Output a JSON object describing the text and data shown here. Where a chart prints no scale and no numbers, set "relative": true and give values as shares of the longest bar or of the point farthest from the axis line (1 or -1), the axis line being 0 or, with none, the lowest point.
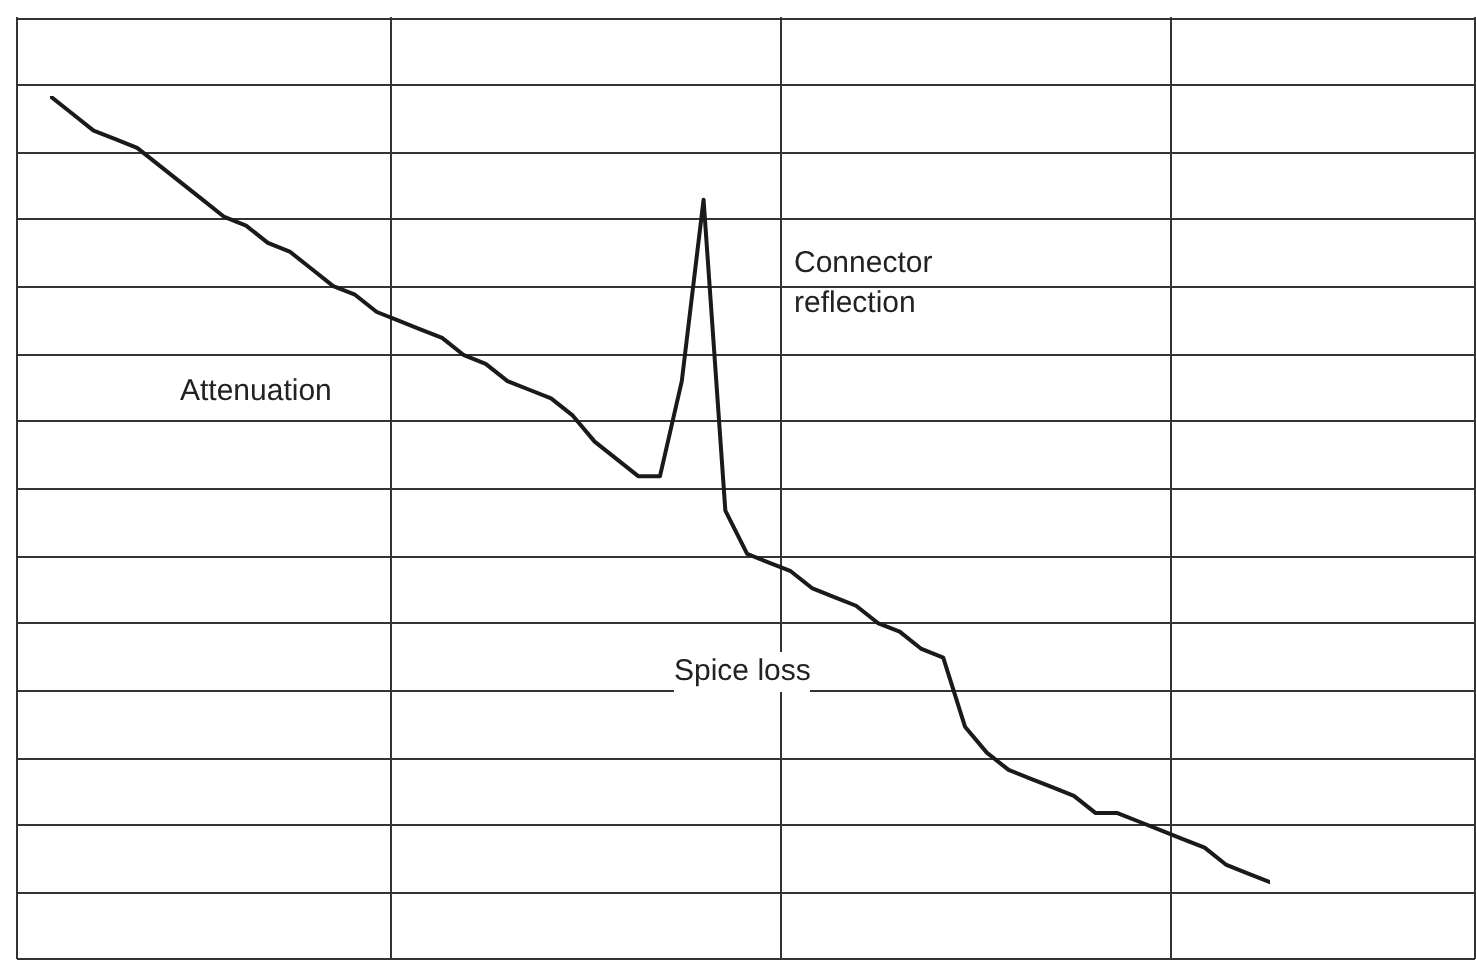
{
  "chart_data": {
    "type": "line",
    "relative": true,
    "grid": true,
    "legend": false,
    "marker": "none",
    "line_style": "solid",
    "categories": [
      null,
      null,
      null,
      null,
      null,
      null,
      null,
      null,
      null,
      null,
      null,
      null,
      null,
      null,
      null,
      null,
      null,
      null,
      null,
      null,
      null,
      null,
      null,
      null,
      null,
      null,
      null,
      null,
      null,
      null,
      null,
      null,
      null,
      null,
      null,
      null,
      null,
      null,
      null,
      null,
      null,
      null,
      null,
      null,
      null,
      null,
      null,
      null,
      null,
      null,
      null,
      null,
      null,
      null,
      null,
      null,
      null
    ],
    "series": [
      {
        "color": "#1a1a1a",
        "values": [
          1,
          0.98,
          0.96,
          0.95,
          0.94,
          0.92,
          0.9,
          0.88,
          0.86,
          0.85,
          0.83,
          0.82,
          0.8,
          0.78,
          0.77,
          0.75,
          0.74,
          0.73,
          0.72,
          0.7,
          0.69,
          0.67,
          0.66,
          0.65,
          0.63,
          0.6,
          0.58,
          0.56,
          0.56,
          0.67,
          0.88,
          0.52,
          0.47,
          0.46,
          0.45,
          0.43,
          0.42,
          0.41,
          0.39,
          0.38,
          0.36,
          0.35,
          0.27,
          0.24,
          0.22,
          0.21,
          0.2,
          0.19,
          0.17,
          0.17,
          0.16,
          0.15,
          0.14,
          0.13,
          0.11,
          0.1,
          0.09
        ]
      }
    ],
    "annotations": [
      "Attenuation",
      "Connector reflection",
      "Spice loss"
    ]
  }
}
